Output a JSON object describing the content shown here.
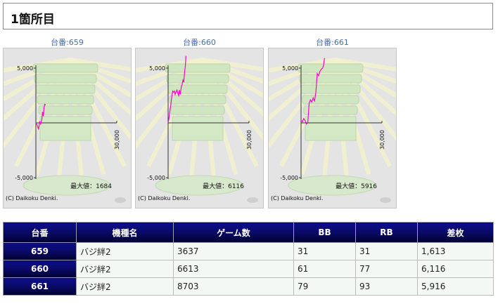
{
  "page_title": "1箇所目",
  "machines": [
    {
      "label": "台番:659",
      "max_label": "最大値：1684",
      "copyright": "(C) Daikoku Denki.",
      "chart_data": {
        "type": "line",
        "ytick_labels": [
          "5,000",
          "-5,000"
        ],
        "xtick_label": "30,000",
        "ylim": [
          -5000,
          5000
        ],
        "xlim": [
          0,
          30000
        ],
        "line_color": "#ff00cc",
        "x": [
          0,
          500,
          1000,
          1400,
          1800,
          2200,
          2500,
          2800,
          3000,
          3300,
          3637
        ],
        "y": [
          0,
          -200,
          -600,
          150,
          -100,
          300,
          1000,
          600,
          1400,
          1700,
          1613
        ]
      }
    },
    {
      "label": "台番:660",
      "max_label": "最大値：6116",
      "copyright": "(C) Daikoku Denki.",
      "chart_data": {
        "type": "line",
        "ytick_labels": [
          "5,000",
          "-5,000"
        ],
        "xtick_label": "30,000",
        "ylim": [
          -5000,
          5000
        ],
        "xlim": [
          0,
          30000
        ],
        "line_color": "#ff00cc",
        "x": [
          0,
          300,
          700,
          1000,
          1300,
          1700,
          2000,
          2300,
          2600,
          2900,
          3300,
          3600,
          3900,
          4200,
          4500,
          4900,
          5200,
          5500,
          5800,
          6100,
          6400,
          6613
        ],
        "y": [
          0,
          400,
          1200,
          1600,
          2300,
          2900,
          2800,
          2900,
          2600,
          2800,
          3000,
          2700,
          2500,
          3000,
          2600,
          3300,
          3500,
          3900,
          3700,
          4600,
          5200,
          6116
        ]
      }
    },
    {
      "label": "台番:661",
      "max_label": "最大値：5916",
      "copyright": "(C) Daikoku Denki.",
      "chart_data": {
        "type": "line",
        "ytick_labels": [
          "5,000",
          "-5,000"
        ],
        "xtick_label": "30,000",
        "ylim": [
          -5000,
          5000
        ],
        "xlim": [
          0,
          30000
        ],
        "line_color": "#ff00cc",
        "x": [
          0,
          500,
          1000,
          1500,
          2000,
          2500,
          3000,
          3500,
          4000,
          4500,
          5000,
          5500,
          6000,
          6500,
          7000,
          7500,
          8000,
          8300,
          8703
        ],
        "y": [
          200,
          100,
          400,
          200,
          -100,
          0,
          1800,
          2100,
          1900,
          2300,
          2000,
          2800,
          4500,
          4300,
          4700,
          4900,
          5000,
          5200,
          5916
        ]
      }
    }
  ],
  "table": {
    "headers": [
      "台番",
      "機種名",
      "ゲーム数",
      "BB",
      "RB",
      "差枚"
    ],
    "rows": [
      [
        "659",
        "バジ絆2",
        "3637",
        "31",
        "31",
        "1,613"
      ],
      [
        "660",
        "バジ絆2",
        "6613",
        "61",
        "77",
        "6,116"
      ],
      [
        "661",
        "バジ絆2",
        "8703",
        "79",
        "93",
        "5,916"
      ]
    ]
  }
}
